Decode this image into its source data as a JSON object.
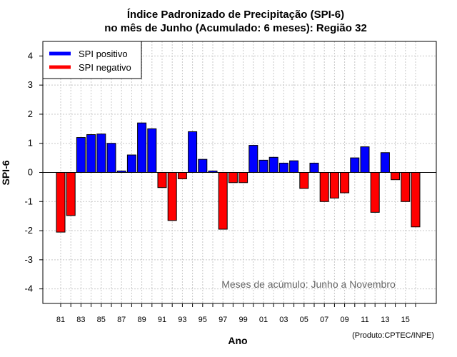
{
  "chart_data": {
    "type": "bar",
    "title_line1": "Índice Padronizado de Precipitação (SPI-6)",
    "title_line2": "no mês de Junho (Acumulado: 6 meses): Região 32",
    "xlabel": "Ano",
    "ylabel": "SPI-6",
    "ylim": [
      -4.5,
      4.5
    ],
    "yticks": [
      -4,
      -3,
      -2,
      -1,
      0,
      1,
      2,
      3,
      4
    ],
    "grid": true,
    "categories": [
      "81",
      "82",
      "83",
      "84",
      "85",
      "86",
      "87",
      "88",
      "89",
      "90",
      "91",
      "92",
      "93",
      "94",
      "95",
      "96",
      "97",
      "98",
      "99",
      "00",
      "01",
      "02",
      "03",
      "04",
      "05",
      "06",
      "07",
      "08",
      "09",
      "10",
      "11",
      "12",
      "13",
      "14",
      "15",
      "16"
    ],
    "values": [
      -2.05,
      -1.48,
      1.2,
      1.3,
      1.32,
      1.0,
      0.05,
      0.6,
      1.7,
      1.5,
      -0.52,
      -1.65,
      -0.22,
      1.4,
      0.45,
      0.05,
      -1.95,
      -0.35,
      -0.35,
      0.93,
      0.42,
      0.52,
      0.32,
      0.4,
      -0.55,
      0.32,
      -1.0,
      -0.88,
      -0.7,
      0.5,
      0.88,
      -1.37,
      0.68,
      -0.25,
      -1.0,
      -1.87
    ],
    "xtick_labels": [
      "81",
      "83",
      "85",
      "87",
      "89",
      "91",
      "93",
      "95",
      "97",
      "99",
      "01",
      "03",
      "05",
      "07",
      "09",
      "11",
      "13",
      "15"
    ],
    "legend": [
      {
        "label": "SPI positivo",
        "color": "#0000ff"
      },
      {
        "label": "SPI negativo",
        "color": "#ff0000"
      }
    ],
    "legend_position": "top-left",
    "annotation": "Meses de acúmulo: Junho a Novembro",
    "credit": "(Produto:CPTEC/INPE)",
    "colors": {
      "positive": "#0000ff",
      "negative": "#ff0000",
      "grid": "#c8c8c8"
    }
  }
}
